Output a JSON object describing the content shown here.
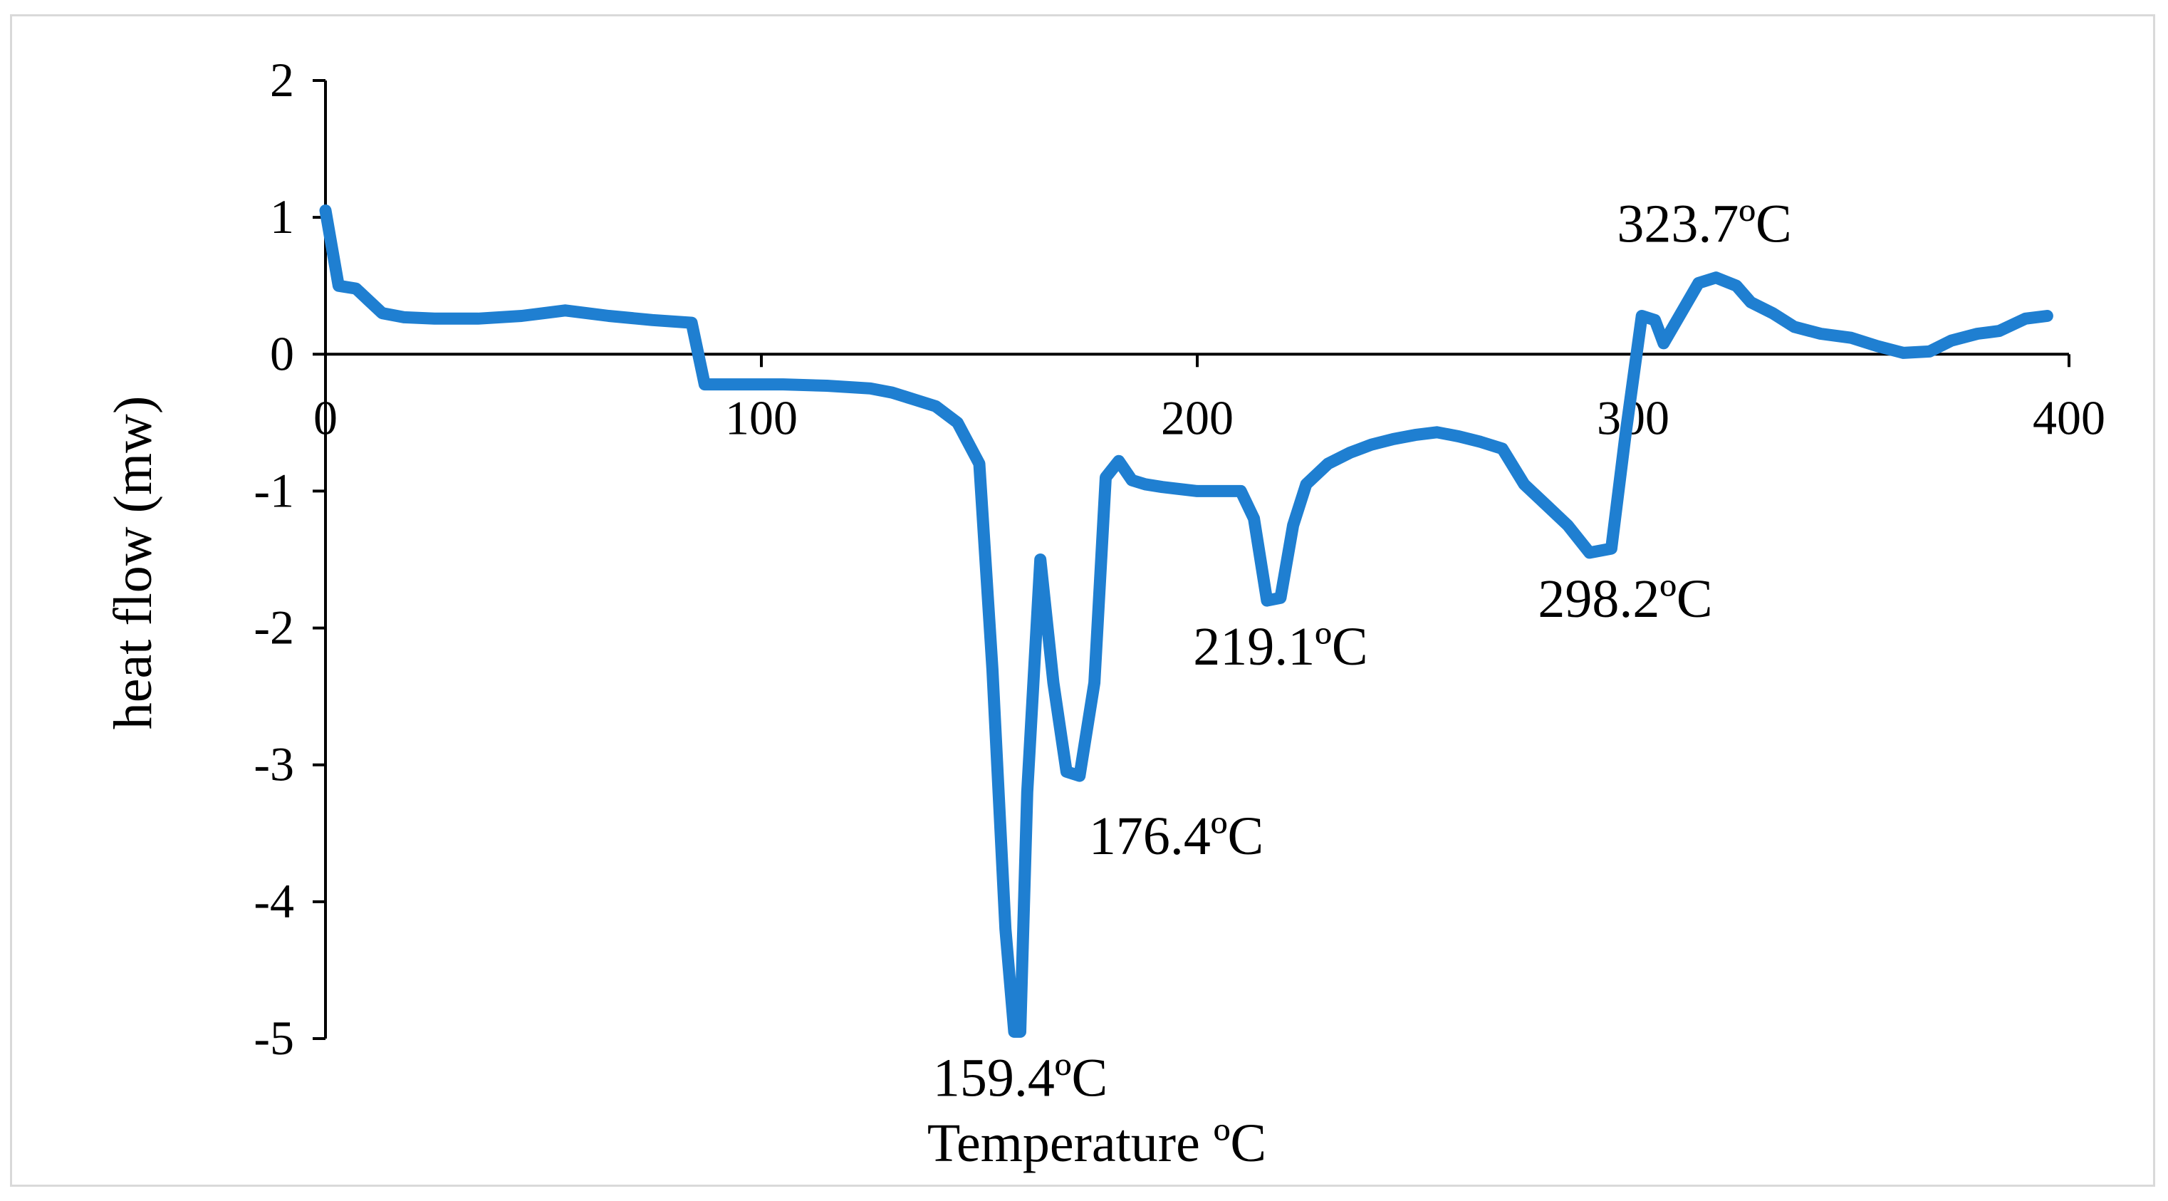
{
  "chart_data": {
    "type": "line",
    "title": "",
    "xlabel": "Temperature ºC",
    "ylabel": "heat flow (mw)",
    "xlim": [
      0,
      400
    ],
    "ylim": [
      -5,
      2
    ],
    "xticks": [
      0,
      100,
      200,
      300,
      400
    ],
    "yticks": [
      2,
      1,
      0,
      -1,
      -2,
      -3,
      -4,
      -5
    ],
    "grid": false,
    "legend": "none",
    "line_color": "#1f7fd1",
    "series": [
      {
        "x": [
          0,
          3,
          7,
          13,
          18,
          25,
          35,
          45,
          55,
          65,
          75,
          84,
          87,
          95,
          105,
          115,
          125,
          130,
          135,
          140,
          145,
          150,
          153,
          156,
          158,
          159.4,
          161,
          164,
          167,
          170,
          173,
          176.4,
          179,
          182,
          185,
          188,
          192,
          200,
          210,
          213,
          216,
          219.1,
          222,
          225,
          230,
          235,
          240,
          245,
          250,
          255,
          260,
          265,
          270,
          275,
          280,
          285,
          290,
          295,
          298.2,
          302,
          305,
          307,
          311,
          315,
          319,
          323.7,
          327,
          332,
          337,
          343,
          350,
          356,
          362,
          368,
          373,
          379,
          384,
          390,
          395
        ],
        "y": [
          1.05,
          0.5,
          0.48,
          0.3,
          0.27,
          0.26,
          0.26,
          0.28,
          0.32,
          0.28,
          0.25,
          0.23,
          -0.22,
          -0.22,
          -0.22,
          -0.23,
          -0.25,
          -0.28,
          -0.33,
          -0.38,
          -0.5,
          -0.8,
          -2.3,
          -4.2,
          -4.95,
          -4.95,
          -3.2,
          -1.5,
          -2.4,
          -3.05,
          -3.08,
          -2.4,
          -0.9,
          -0.78,
          -0.92,
          -0.95,
          -0.97,
          -1.0,
          -1.0,
          -1.2,
          -1.8,
          -1.78,
          -1.25,
          -0.95,
          -0.8,
          -0.72,
          -0.66,
          -0.62,
          -0.59,
          -0.57,
          -0.6,
          -0.64,
          -0.69,
          -0.95,
          -1.1,
          -1.25,
          -1.45,
          -1.42,
          -0.6,
          0.28,
          0.25,
          0.08,
          0.3,
          0.52,
          0.56,
          0.5,
          0.38,
          0.3,
          0.2,
          0.15,
          0.12,
          0.06,
          0.01,
          0.02,
          0.1,
          0.15,
          0.17,
          0.26,
          0.28
        ]
      }
    ],
    "annotations": [
      {
        "text": "159.4ºC",
        "x": 159.4,
        "y": -4.95,
        "anchor": "below"
      },
      {
        "text": "176.4ºC",
        "x": 176.4,
        "y": -3.08,
        "anchor": "below-right"
      },
      {
        "text": "219.1ºC",
        "x": 219.1,
        "y": -1.8,
        "anchor": "below"
      },
      {
        "text": "298.2ºC",
        "x": 298.2,
        "y": -1.45,
        "anchor": "below"
      },
      {
        "text": "323.7ºC",
        "x": 323.7,
        "y": 0.56,
        "anchor": "above"
      }
    ]
  }
}
